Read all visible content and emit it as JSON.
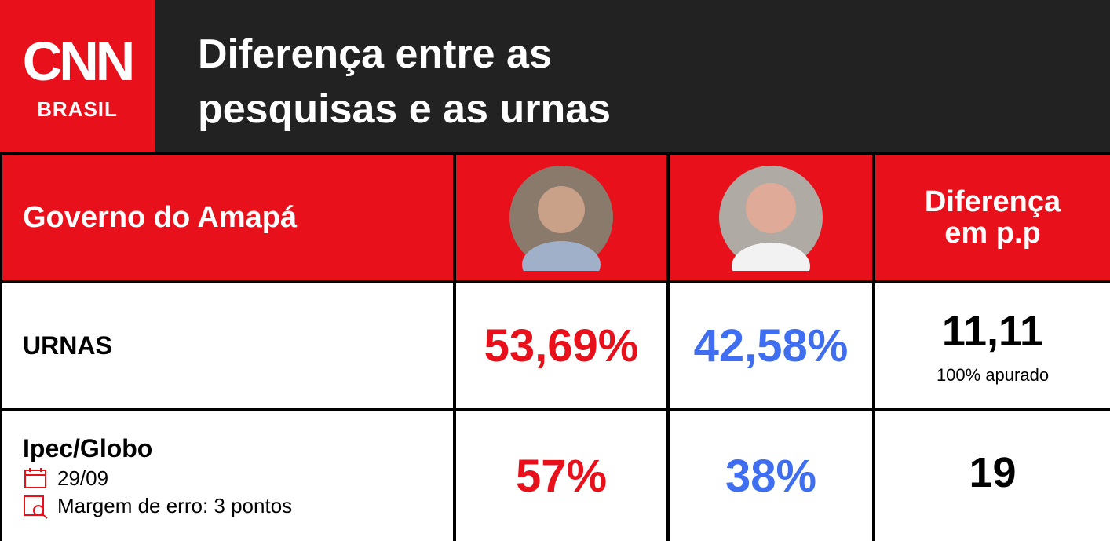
{
  "header": {
    "logo": "CNN",
    "logo_sub": "BRASIL",
    "title_lines": [
      "Diferença entre as",
      "pesquisas e as urnas"
    ]
  },
  "table": {
    "corner": "Governo do Amapá",
    "difference_header": "Diferença em p.p",
    "rows": [
      {
        "label": "URNAS",
        "candidate_1": "53,69%",
        "candidate_2": "42,58%",
        "difference": "11,11",
        "note": "100% apurado"
      },
      {
        "label": "Ipec/Globo",
        "date": "29/09",
        "margin": "Margem de erro: 3 pontos",
        "candidate_1": "57%",
        "candidate_2": "38%",
        "difference": "19"
      }
    ]
  }
}
